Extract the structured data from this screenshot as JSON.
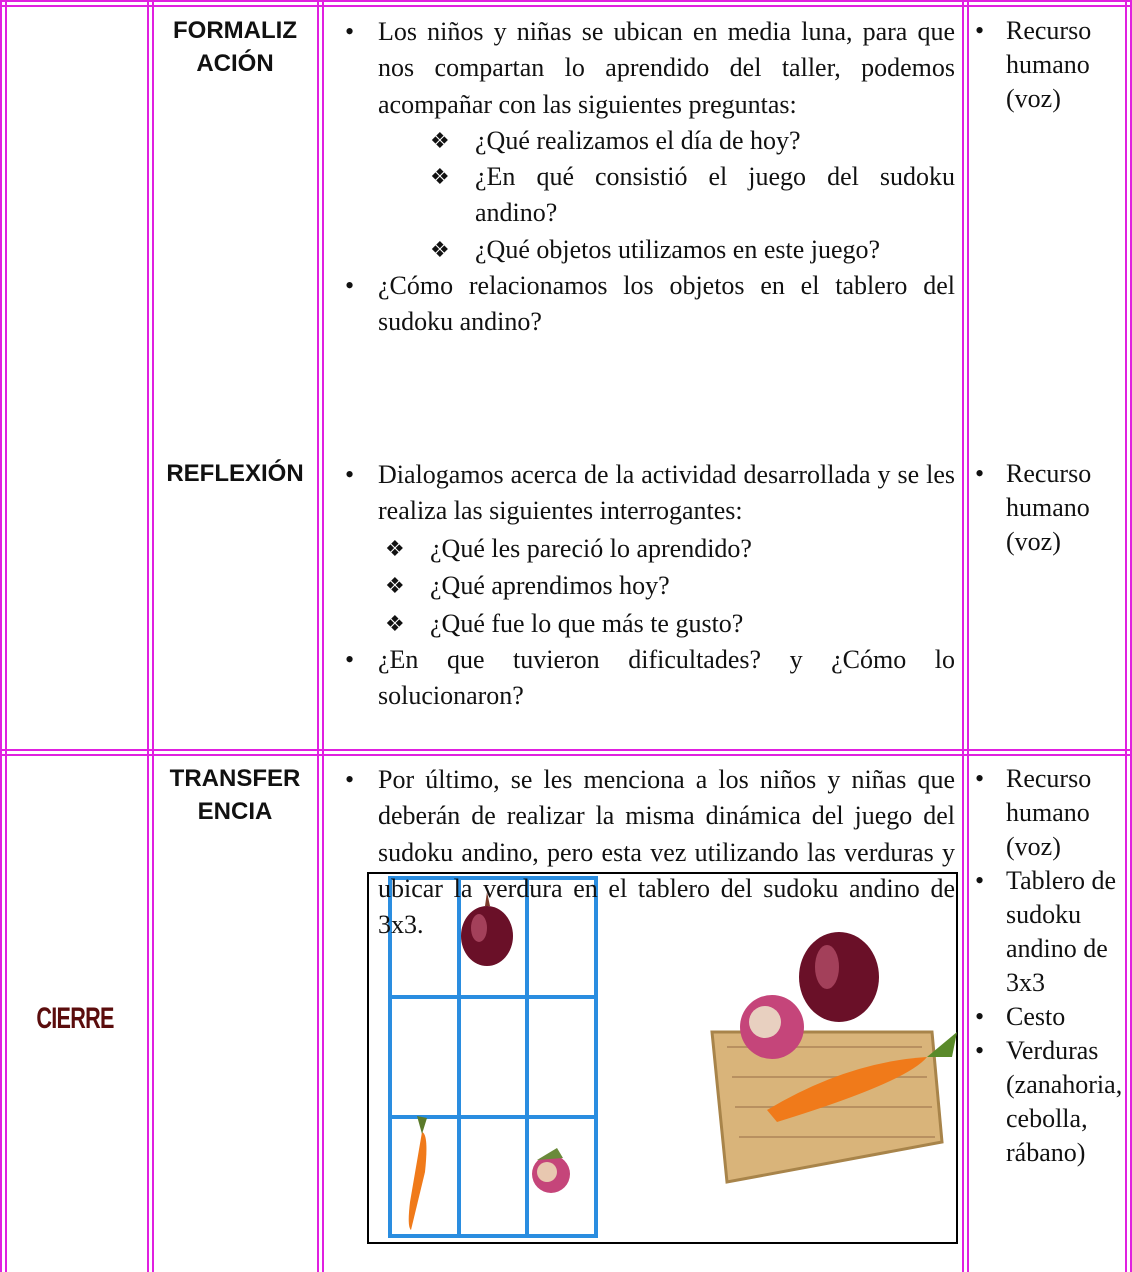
{
  "table": {
    "rows": [
      {
        "steps": [
          {
            "label": [
              "FORMALIZ",
              "ACIÓN"
            ],
            "items": [
              {
                "text": "Los niños y niñas se ubican en media luna, para que nos compartan lo aprendido del taller, podemos acompañar con las siguientes preguntas:",
                "sub": [
                  "¿Qué realizamos el día de hoy?",
                  "¿En qué consistió el juego del sudoku andino?",
                  "¿Qué objetos utilizamos en este juego?"
                ]
              },
              {
                "text": "¿Cómo relacionamos los objetos en el tablero del sudoku andino?"
              }
            ],
            "resources": [
              "Recurso humano (voz)"
            ]
          },
          {
            "label": [
              "REFLEXIÓN"
            ],
            "items": [
              {
                "text": "Dialogamos acerca de la actividad desarrollada y se les realiza las siguientes interrogantes:",
                "sub": [
                  "¿Qué les pareció lo aprendido?",
                  "¿Qué aprendimos hoy?",
                  "¿Qué fue lo que más te gusto?"
                ]
              },
              {
                "text": "¿En que tuvieron dificultades? y ¿Cómo lo solucionaron?"
              }
            ],
            "resources": [
              "Recurso humano (voz)"
            ]
          }
        ]
      },
      {
        "phase": "CIERRE",
        "steps": [
          {
            "label": [
              "TRANSFER",
              "ENCIA"
            ],
            "items": [
              {
                "text": "Por último, se les menciona a los niños y niñas que deberán de realizar la misma dinámica del juego del sudoku andino, pero esta vez utilizando las verduras y ubicar la verdura en el tablero del sudoku andino de 3x3."
              }
            ],
            "resources": [
              "Recurso humano (voz)",
              "Tablero de sudoku andino de 3x3",
              "Cesto",
              "Verduras (zanahoria, cebolla, rábano)"
            ]
          }
        ]
      }
    ]
  }
}
